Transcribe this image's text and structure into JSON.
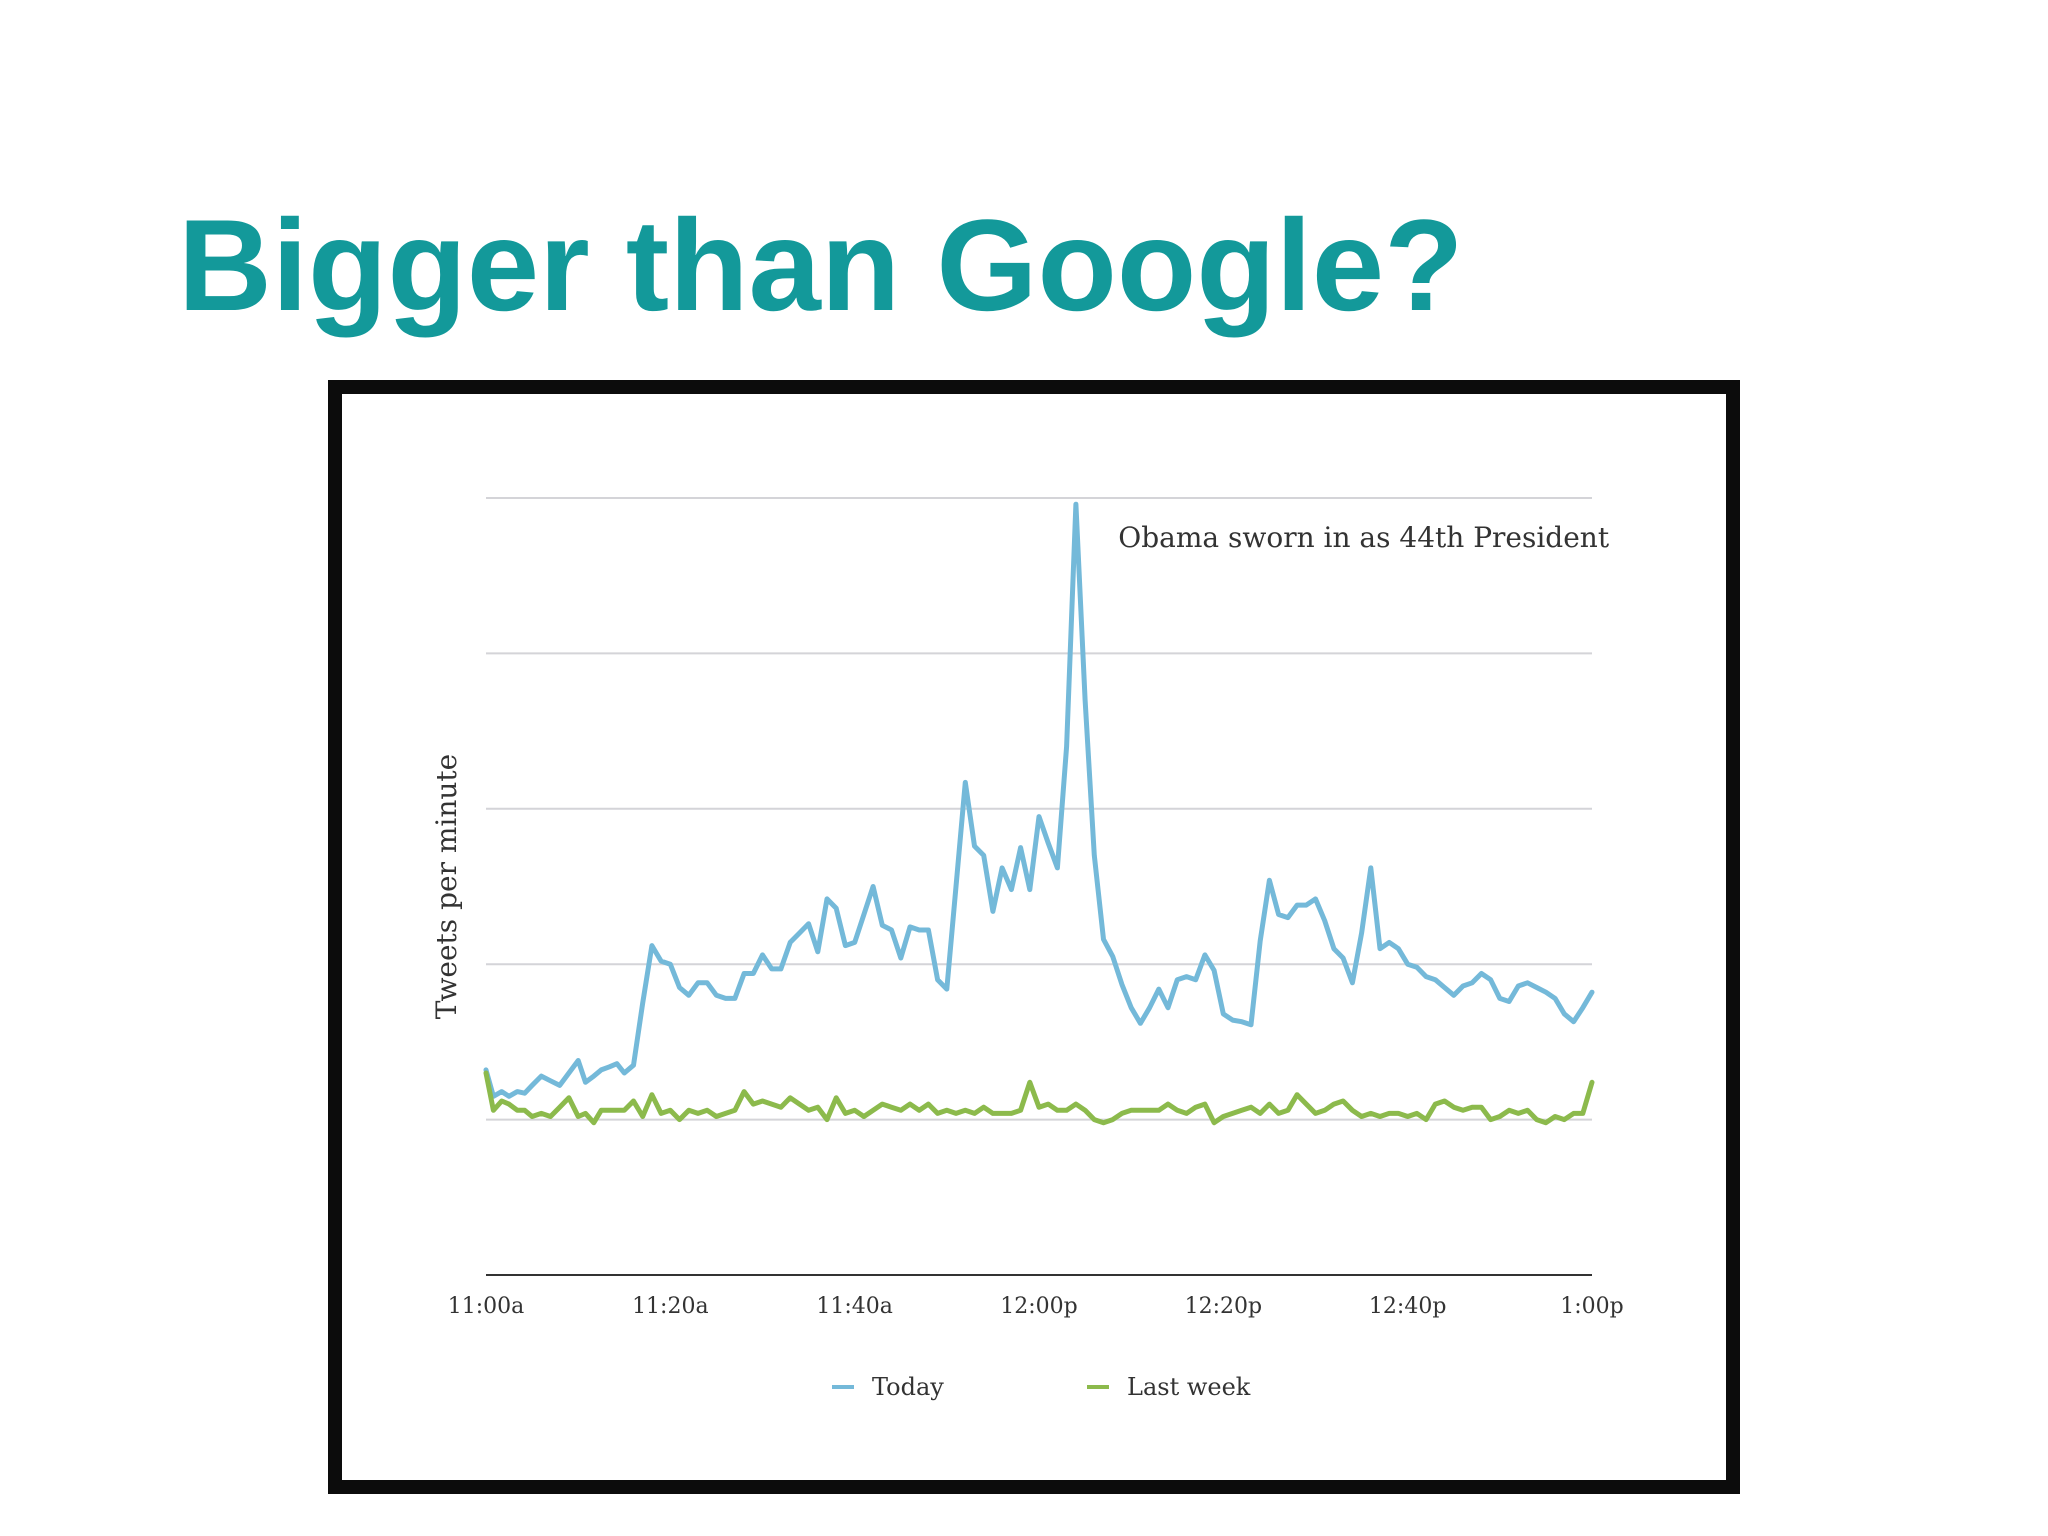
{
  "slide": {
    "title": "Bigger than Google?"
  },
  "chart_data": {
    "type": "line",
    "title": "",
    "xlabel": "",
    "ylabel": "Tweets per minute",
    "x_ticks": [
      "11:00a",
      "11:20a",
      "11:40a",
      "12:00p",
      "12:20p",
      "12:40p",
      "1:00p"
    ],
    "x_range_minutes": [
      0,
      120
    ],
    "ylim": [
      0,
      5
    ],
    "y_gridlines": [
      1,
      2,
      3,
      4,
      5
    ],
    "y_tick_labels_visible": false,
    "grid": true,
    "legend": "bottom-center",
    "annotation": {
      "text": "Obama sworn in as 44th President",
      "x": 66
    },
    "series": [
      {
        "name": "Today",
        "color": "#74b9d9",
        "points": [
          [
            0,
            1.32
          ],
          [
            0.8,
            1.15
          ],
          [
            1.7,
            1.18
          ],
          [
            2.5,
            1.15
          ],
          [
            3.4,
            1.18
          ],
          [
            4.2,
            1.17
          ],
          [
            5,
            1.22
          ],
          [
            6,
            1.28
          ],
          [
            7,
            1.25
          ],
          [
            8,
            1.22
          ],
          [
            9,
            1.3
          ],
          [
            10,
            1.38
          ],
          [
            10.8,
            1.24
          ],
          [
            11.7,
            1.28
          ],
          [
            12.5,
            1.32
          ],
          [
            13.4,
            1.34
          ],
          [
            14.2,
            1.36
          ],
          [
            15,
            1.3
          ],
          [
            16,
            1.35
          ],
          [
            17,
            1.75
          ],
          [
            18,
            2.12
          ],
          [
            19,
            2.02
          ],
          [
            20,
            2.0
          ],
          [
            21,
            1.85
          ],
          [
            22,
            1.8
          ],
          [
            23,
            1.88
          ],
          [
            24,
            1.88
          ],
          [
            25,
            1.8
          ],
          [
            26,
            1.78
          ],
          [
            27,
            1.78
          ],
          [
            28,
            1.94
          ],
          [
            29,
            1.94
          ],
          [
            30,
            2.06
          ],
          [
            31,
            1.97
          ],
          [
            32,
            1.97
          ],
          [
            33,
            2.14
          ],
          [
            34,
            2.2
          ],
          [
            35,
            2.26
          ],
          [
            36,
            2.08
          ],
          [
            37,
            2.42
          ],
          [
            38,
            2.36
          ],
          [
            39,
            2.12
          ],
          [
            40,
            2.14
          ],
          [
            41,
            2.32
          ],
          [
            42,
            2.5
          ],
          [
            43,
            2.25
          ],
          [
            44,
            2.22
          ],
          [
            45,
            2.04
          ],
          [
            46,
            2.24
          ],
          [
            47,
            2.22
          ],
          [
            48,
            2.22
          ],
          [
            49,
            1.9
          ],
          [
            50,
            1.84
          ],
          [
            51,
            2.5
          ],
          [
            52,
            3.17
          ],
          [
            53,
            2.76
          ],
          [
            54,
            2.7
          ],
          [
            55,
            2.34
          ],
          [
            56,
            2.62
          ],
          [
            57,
            2.48
          ],
          [
            58,
            2.75
          ],
          [
            59,
            2.48
          ],
          [
            60,
            2.95
          ],
          [
            61,
            2.78
          ],
          [
            62,
            2.62
          ],
          [
            63,
            3.4
          ],
          [
            64,
            4.96
          ],
          [
            65,
            3.7
          ],
          [
            66,
            2.7
          ],
          [
            67,
            2.16
          ],
          [
            68,
            2.05
          ],
          [
            69,
            1.87
          ],
          [
            70,
            1.72
          ],
          [
            71,
            1.62
          ],
          [
            72,
            1.72
          ],
          [
            73,
            1.84
          ],
          [
            74,
            1.72
          ],
          [
            75,
            1.9
          ],
          [
            76,
            1.92
          ],
          [
            77,
            1.9
          ],
          [
            78,
            2.06
          ],
          [
            79,
            1.96
          ],
          [
            80,
            1.68
          ],
          [
            81,
            1.64
          ],
          [
            82,
            1.63
          ],
          [
            83,
            1.61
          ],
          [
            84,
            2.15
          ],
          [
            85,
            2.54
          ],
          [
            86,
            2.32
          ],
          [
            87,
            2.3
          ],
          [
            88,
            2.38
          ],
          [
            89,
            2.38
          ],
          [
            90,
            2.42
          ],
          [
            91,
            2.28
          ],
          [
            92,
            2.1
          ],
          [
            93,
            2.04
          ],
          [
            94,
            1.88
          ],
          [
            95,
            2.2
          ],
          [
            96,
            2.62
          ],
          [
            97,
            2.1
          ],
          [
            98,
            2.14
          ],
          [
            99,
            2.1
          ],
          [
            100,
            2.0
          ],
          [
            101,
            1.98
          ],
          [
            102,
            1.92
          ],
          [
            103,
            1.9
          ],
          [
            104,
            1.85
          ],
          [
            105,
            1.8
          ],
          [
            106,
            1.86
          ],
          [
            107,
            1.88
          ],
          [
            108,
            1.94
          ],
          [
            109,
            1.9
          ],
          [
            110,
            1.78
          ],
          [
            111,
            1.76
          ],
          [
            112,
            1.86
          ],
          [
            113,
            1.88
          ],
          [
            114,
            1.85
          ],
          [
            115,
            1.82
          ],
          [
            116,
            1.78
          ],
          [
            117,
            1.68
          ],
          [
            118,
            1.63
          ],
          [
            119,
            1.72
          ],
          [
            120,
            1.82
          ]
        ]
      },
      {
        "name": "Last week",
        "color": "#8cba4c",
        "points": [
          [
            0,
            1.3
          ],
          [
            0.8,
            1.06
          ],
          [
            1.7,
            1.12
          ],
          [
            2.5,
            1.1
          ],
          [
            3.4,
            1.06
          ],
          [
            4.2,
            1.06
          ],
          [
            5,
            1.02
          ],
          [
            6,
            1.04
          ],
          [
            7,
            1.02
          ],
          [
            8,
            1.08
          ],
          [
            9,
            1.14
          ],
          [
            10,
            1.02
          ],
          [
            10.8,
            1.04
          ],
          [
            11.7,
            0.98
          ],
          [
            12.5,
            1.06
          ],
          [
            13.4,
            1.06
          ],
          [
            14.2,
            1.06
          ],
          [
            15,
            1.06
          ],
          [
            16,
            1.12
          ],
          [
            17,
            1.02
          ],
          [
            18,
            1.16
          ],
          [
            19,
            1.04
          ],
          [
            20,
            1.06
          ],
          [
            21,
            1.0
          ],
          [
            22,
            1.06
          ],
          [
            23,
            1.04
          ],
          [
            24,
            1.06
          ],
          [
            25,
            1.02
          ],
          [
            26,
            1.04
          ],
          [
            27,
            1.06
          ],
          [
            28,
            1.18
          ],
          [
            29,
            1.1
          ],
          [
            30,
            1.12
          ],
          [
            31,
            1.1
          ],
          [
            32,
            1.08
          ],
          [
            33,
            1.14
          ],
          [
            34,
            1.1
          ],
          [
            35,
            1.06
          ],
          [
            36,
            1.08
          ],
          [
            37,
            1.0
          ],
          [
            38,
            1.14
          ],
          [
            39,
            1.04
          ],
          [
            40,
            1.06
          ],
          [
            41,
            1.02
          ],
          [
            42,
            1.06
          ],
          [
            43,
            1.1
          ],
          [
            44,
            1.08
          ],
          [
            45,
            1.06
          ],
          [
            46,
            1.1
          ],
          [
            47,
            1.06
          ],
          [
            48,
            1.1
          ],
          [
            49,
            1.04
          ],
          [
            50,
            1.06
          ],
          [
            51,
            1.04
          ],
          [
            52,
            1.06
          ],
          [
            53,
            1.04
          ],
          [
            54,
            1.08
          ],
          [
            55,
            1.04
          ],
          [
            56,
            1.04
          ],
          [
            57,
            1.04
          ],
          [
            58,
            1.06
          ],
          [
            59,
            1.24
          ],
          [
            60,
            1.08
          ],
          [
            61,
            1.1
          ],
          [
            62,
            1.06
          ],
          [
            63,
            1.06
          ],
          [
            64,
            1.1
          ],
          [
            65,
            1.06
          ],
          [
            66,
            1.0
          ],
          [
            67,
            0.98
          ],
          [
            68,
            1.0
          ],
          [
            69,
            1.04
          ],
          [
            70,
            1.06
          ],
          [
            71,
            1.06
          ],
          [
            72,
            1.06
          ],
          [
            73,
            1.06
          ],
          [
            74,
            1.1
          ],
          [
            75,
            1.06
          ],
          [
            76,
            1.04
          ],
          [
            77,
            1.08
          ],
          [
            78,
            1.1
          ],
          [
            79,
            0.98
          ],
          [
            80,
            1.02
          ],
          [
            81,
            1.04
          ],
          [
            82,
            1.06
          ],
          [
            83,
            1.08
          ],
          [
            84,
            1.04
          ],
          [
            85,
            1.1
          ],
          [
            86,
            1.04
          ],
          [
            87,
            1.06
          ],
          [
            88,
            1.16
          ],
          [
            89,
            1.1
          ],
          [
            90,
            1.04
          ],
          [
            91,
            1.06
          ],
          [
            92,
            1.1
          ],
          [
            93,
            1.12
          ],
          [
            94,
            1.06
          ],
          [
            95,
            1.02
          ],
          [
            96,
            1.04
          ],
          [
            97,
            1.02
          ],
          [
            98,
            1.04
          ],
          [
            99,
            1.04
          ],
          [
            100,
            1.02
          ],
          [
            101,
            1.04
          ],
          [
            102,
            1.0
          ],
          [
            103,
            1.1
          ],
          [
            104,
            1.12
          ],
          [
            105,
            1.08
          ],
          [
            106,
            1.06
          ],
          [
            107,
            1.08
          ],
          [
            108,
            1.08
          ],
          [
            109,
            1.0
          ],
          [
            110,
            1.02
          ],
          [
            111,
            1.06
          ],
          [
            112,
            1.04
          ],
          [
            113,
            1.06
          ],
          [
            114,
            1.0
          ],
          [
            115,
            0.98
          ],
          [
            116,
            1.02
          ],
          [
            117,
            1.0
          ],
          [
            118,
            1.04
          ],
          [
            119,
            1.04
          ],
          [
            120,
            1.24
          ]
        ]
      }
    ]
  }
}
